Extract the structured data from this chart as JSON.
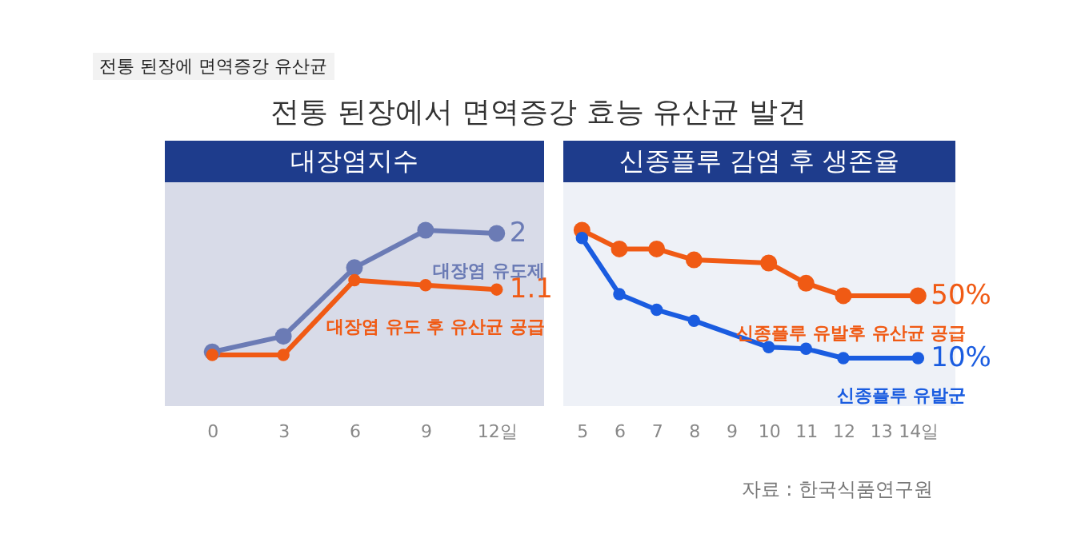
{
  "chart_data": [
    {
      "type": "line",
      "title": "대장염지수",
      "x": [
        0,
        3,
        6,
        9,
        12
      ],
      "xlim": [
        -2,
        14
      ],
      "xticks": [
        0,
        3,
        6,
        9,
        {
          "value": 12,
          "label": "12일"
        }
      ],
      "legend": false,
      "grid": false,
      "marker": "circle",
      "tick_labels": "x",
      "annotations": [
        "전통 된장에 면역증강 유산균",
        "전통 된장에서 면역증강 효능 유산균 발견"
      ],
      "series": [
        {
          "name": "대장염 유도제",
          "color": "#6b7bb5",
          "values": [
            0.1,
            0.35,
            1.45,
            2.05,
            2
          ],
          "value_labels": [
            null,
            null,
            null,
            null,
            "2"
          ]
        },
        {
          "name": "대장염 유도 후 유산균 공급",
          "color": "#f05a14",
          "values": [
            0.05,
            0.05,
            1.25,
            1.17,
            1.1
          ],
          "value_labels": [
            null,
            null,
            null,
            null,
            "1.1"
          ]
        }
      ]
    },
    {
      "type": "line",
      "title": "신종플루 감염 후 생존율",
      "x": [
        5,
        6,
        7,
        8,
        10,
        11,
        12,
        14
      ],
      "xlim": [
        4.5,
        15
      ],
      "xticks": [
        5,
        6,
        7,
        8,
        9,
        10,
        11,
        12,
        13,
        {
          "value": 14,
          "label": "14일"
        }
      ],
      "legend": false,
      "grid": false,
      "marker": "circle",
      "tick_labels": "x",
      "annotations": [
        "자료 : 한국식품연구원"
      ],
      "series": [
        {
          "name": "신종플루 유발후 유산균 공급",
          "color": "#f05a14",
          "values": [
            92,
            80,
            80,
            73,
            71,
            58,
            50,
            50
          ],
          "value_labels": [
            null,
            null,
            null,
            null,
            null,
            null,
            null,
            "50%"
          ]
        },
        {
          "name": "신종플루 유발군",
          "color": "#1a5ce0",
          "values": [
            87,
            51,
            41,
            34,
            17,
            16,
            10,
            10
          ],
          "value_labels": [
            null,
            null,
            null,
            null,
            null,
            null,
            null,
            "10%"
          ]
        }
      ]
    }
  ]
}
